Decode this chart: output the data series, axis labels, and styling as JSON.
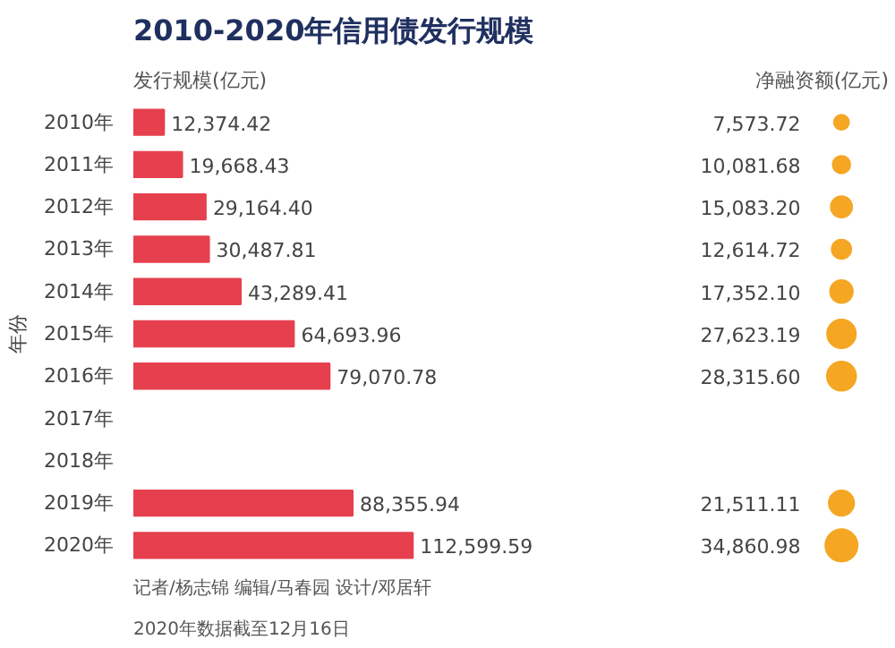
{
  "chart_data": [
    {
      "type": "bar",
      "orientation": "horizontal",
      "title": "2010-2020年信用债发行规模",
      "xlabel": "发行规模(亿元)",
      "ylabel": "年份",
      "grid": false,
      "categories": [
        "2010年",
        "2011年",
        "2012年",
        "2013年",
        "2014年",
        "2015年",
        "2016年",
        "2017年",
        "2018年",
        "2019年",
        "2020年"
      ],
      "values": [
        12374.42,
        19668.43,
        29164.4,
        30487.81,
        43289.41,
        64693.96,
        79070.78,
        null,
        null,
        88355.94,
        112599.59
      ],
      "value_labels": [
        "12,374.42",
        "19,668.43",
        "29,164.40",
        "30,487.81",
        "43,289.41",
        "64,693.96",
        "79,070.78",
        null,
        null,
        "88,355.94",
        "112,599.59"
      ],
      "color": "#e6404f",
      "annotations": [
        "2020年数据截至12月16日",
        "记者/杨志锦 编辑/马春园 设计/邓居轩"
      ]
    },
    {
      "type": "other",
      "title": "净融资额(亿元)",
      "values": [
        7573.72,
        10081.68,
        15083.2,
        12614.72,
        17352.1,
        27623.19,
        28315.6,
        null,
        null,
        21511.11,
        34860.98
      ],
      "value_labels": [
        "7,573.72",
        "10,081.68",
        "15,083.20",
        "12,614.72",
        "17,352.10",
        "27,623.19",
        "28,315.60",
        null,
        null,
        "21,511.11",
        "34,860.98"
      ],
      "color": "#f5a623"
    }
  ]
}
